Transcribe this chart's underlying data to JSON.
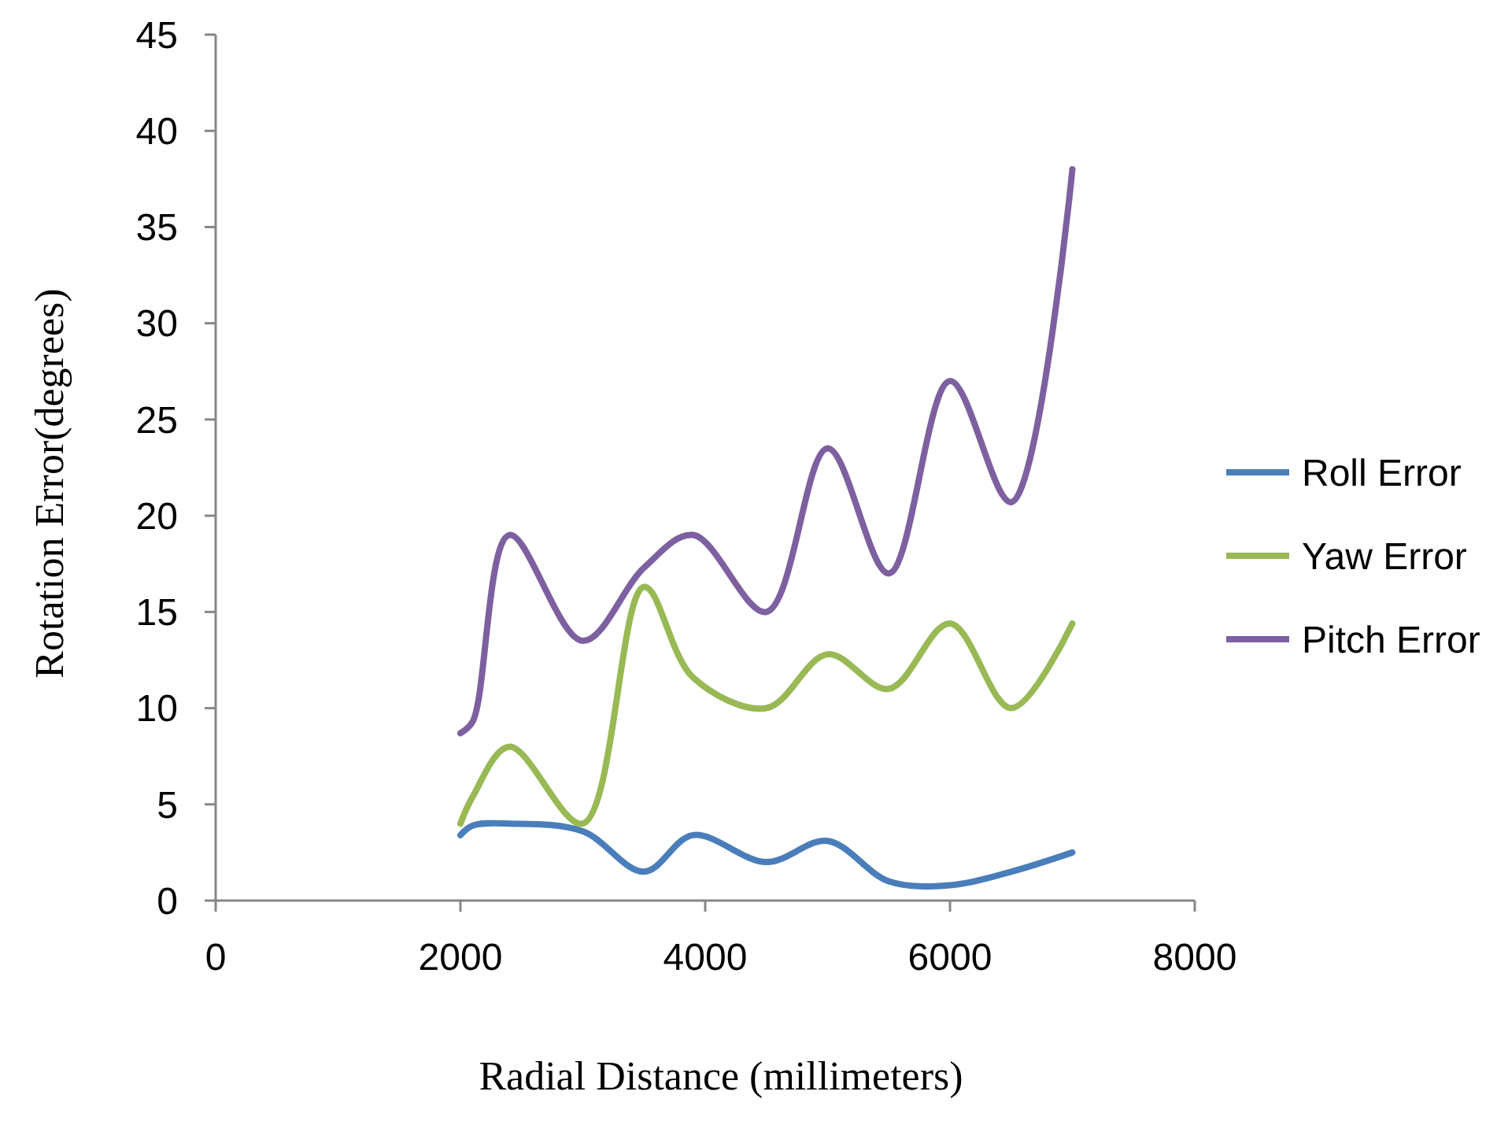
{
  "chart_data": {
    "type": "line",
    "xlabel": "Radial Distance (millimeters)",
    "ylabel": "Rotation Error(degrees)",
    "x": [
      2000,
      2100,
      2400,
      3000,
      3500,
      3900,
      4500,
      5000,
      5500,
      6000,
      6500,
      7000
    ],
    "series": [
      {
        "name": "Roll Error",
        "color": "#4a7ebb",
        "values": [
          3.4,
          3.9,
          4,
          3.6,
          1.5,
          3.4,
          2,
          3.1,
          1,
          0.8,
          1.5,
          2.5
        ]
      },
      {
        "name": "Yaw Error",
        "color": "#98b954",
        "values": [
          4,
          5.4,
          8,
          4,
          16.3,
          11.6,
          10,
          12.8,
          11,
          14.4,
          10,
          14.4
        ]
      },
      {
        "name": "Pitch Error",
        "color": "#7d60a0",
        "values": [
          8.7,
          9.3,
          19,
          13.5,
          17.3,
          19,
          15,
          23.5,
          17,
          27,
          20.7,
          38
        ]
      }
    ],
    "xlim": [
      0,
      8000
    ],
    "xticks": [
      0,
      2000,
      4000,
      6000,
      8000
    ],
    "ylim": [
      0,
      45
    ],
    "yticks": [
      0,
      5,
      10,
      15,
      20,
      25,
      30,
      35,
      40,
      45
    ],
    "grid": false,
    "legend": "right",
    "marker": "none",
    "line_style": "solid"
  }
}
